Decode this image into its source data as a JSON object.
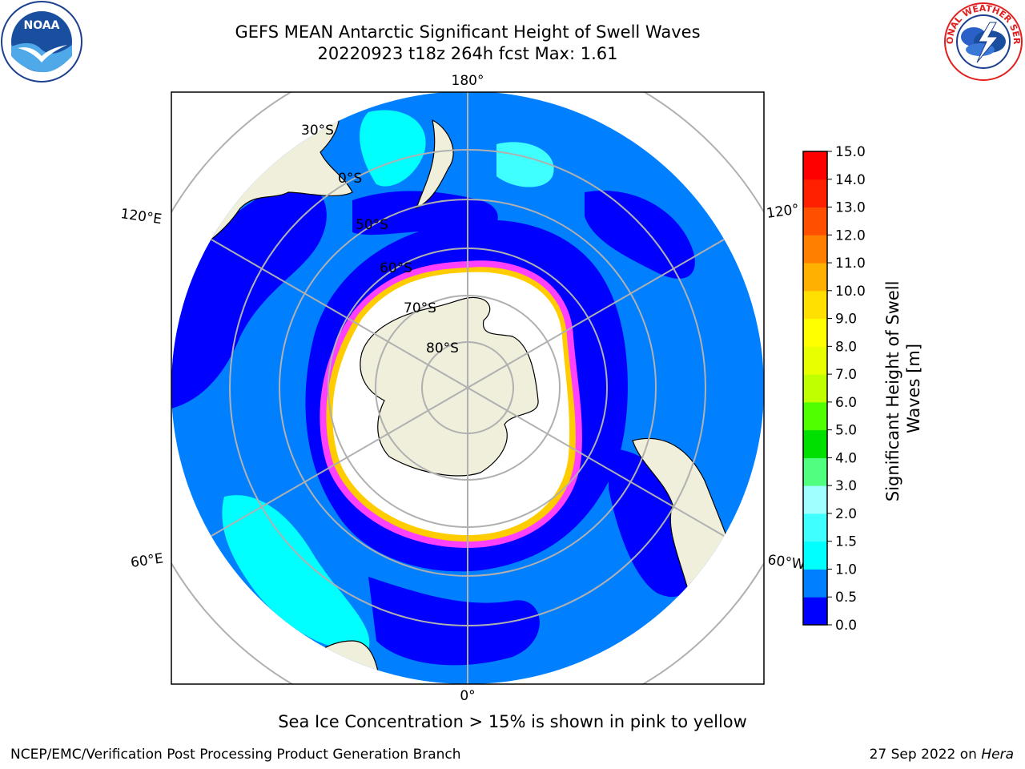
{
  "title": {
    "line1": "GEFS MEAN Antarctic Significant Height of Swell Waves",
    "line2": "20220923 t18z 264h fcst   Max: 1.61"
  },
  "map": {
    "projection": "south-polar-stereographic",
    "longitude_labels": [
      "180°",
      "120°E",
      "120°",
      "60°E",
      "60°W",
      "0°"
    ],
    "latitude_labels": [
      "30°S",
      "0°S",
      "50°S",
      "60°S",
      "70°S",
      "80°S"
    ]
  },
  "colorbar": {
    "label_line1": "Significant Height of Swell",
    "label_line2": "Waves [m]",
    "ticks": [
      "0.0",
      "0.5",
      "1.0",
      "1.5",
      "2.0",
      "3.0",
      "4.0",
      "5.0",
      "6.0",
      "7.0",
      "8.0",
      "9.0",
      "10.0",
      "11.0",
      "12.0",
      "13.0",
      "14.0",
      "15.0"
    ],
    "colors": [
      "#0000ff",
      "#0080ff",
      "#00ffff",
      "#40ffff",
      "#a0ffff",
      "#50ff80",
      "#00e000",
      "#50ff00",
      "#c0ff00",
      "#e8ff00",
      "#ffff00",
      "#ffe000",
      "#ffb000",
      "#ff8000",
      "#ff5000",
      "#ff2000",
      "#ff0000"
    ]
  },
  "colors": {
    "ocean_low": "#0000ff",
    "ocean_mid": "#0080ff",
    "ocean_cyan": "#00ffff",
    "land": "#efefdc",
    "ice_pink": "#ff40ff",
    "ice_yellow": "#ffcc00",
    "grid": "#b0b0b0"
  },
  "note": "Sea Ice Concentration > 15% is shown in pink to yellow",
  "footer": {
    "left": "NCEP/EMC/Verification Post Processing Product Generation Branch",
    "right_date": "27 Sep 2022 on ",
    "right_host": "Hera"
  },
  "logos": {
    "noaa_text": "NOAA",
    "nws_text": "NATIONAL WEATHER SERVICE"
  }
}
